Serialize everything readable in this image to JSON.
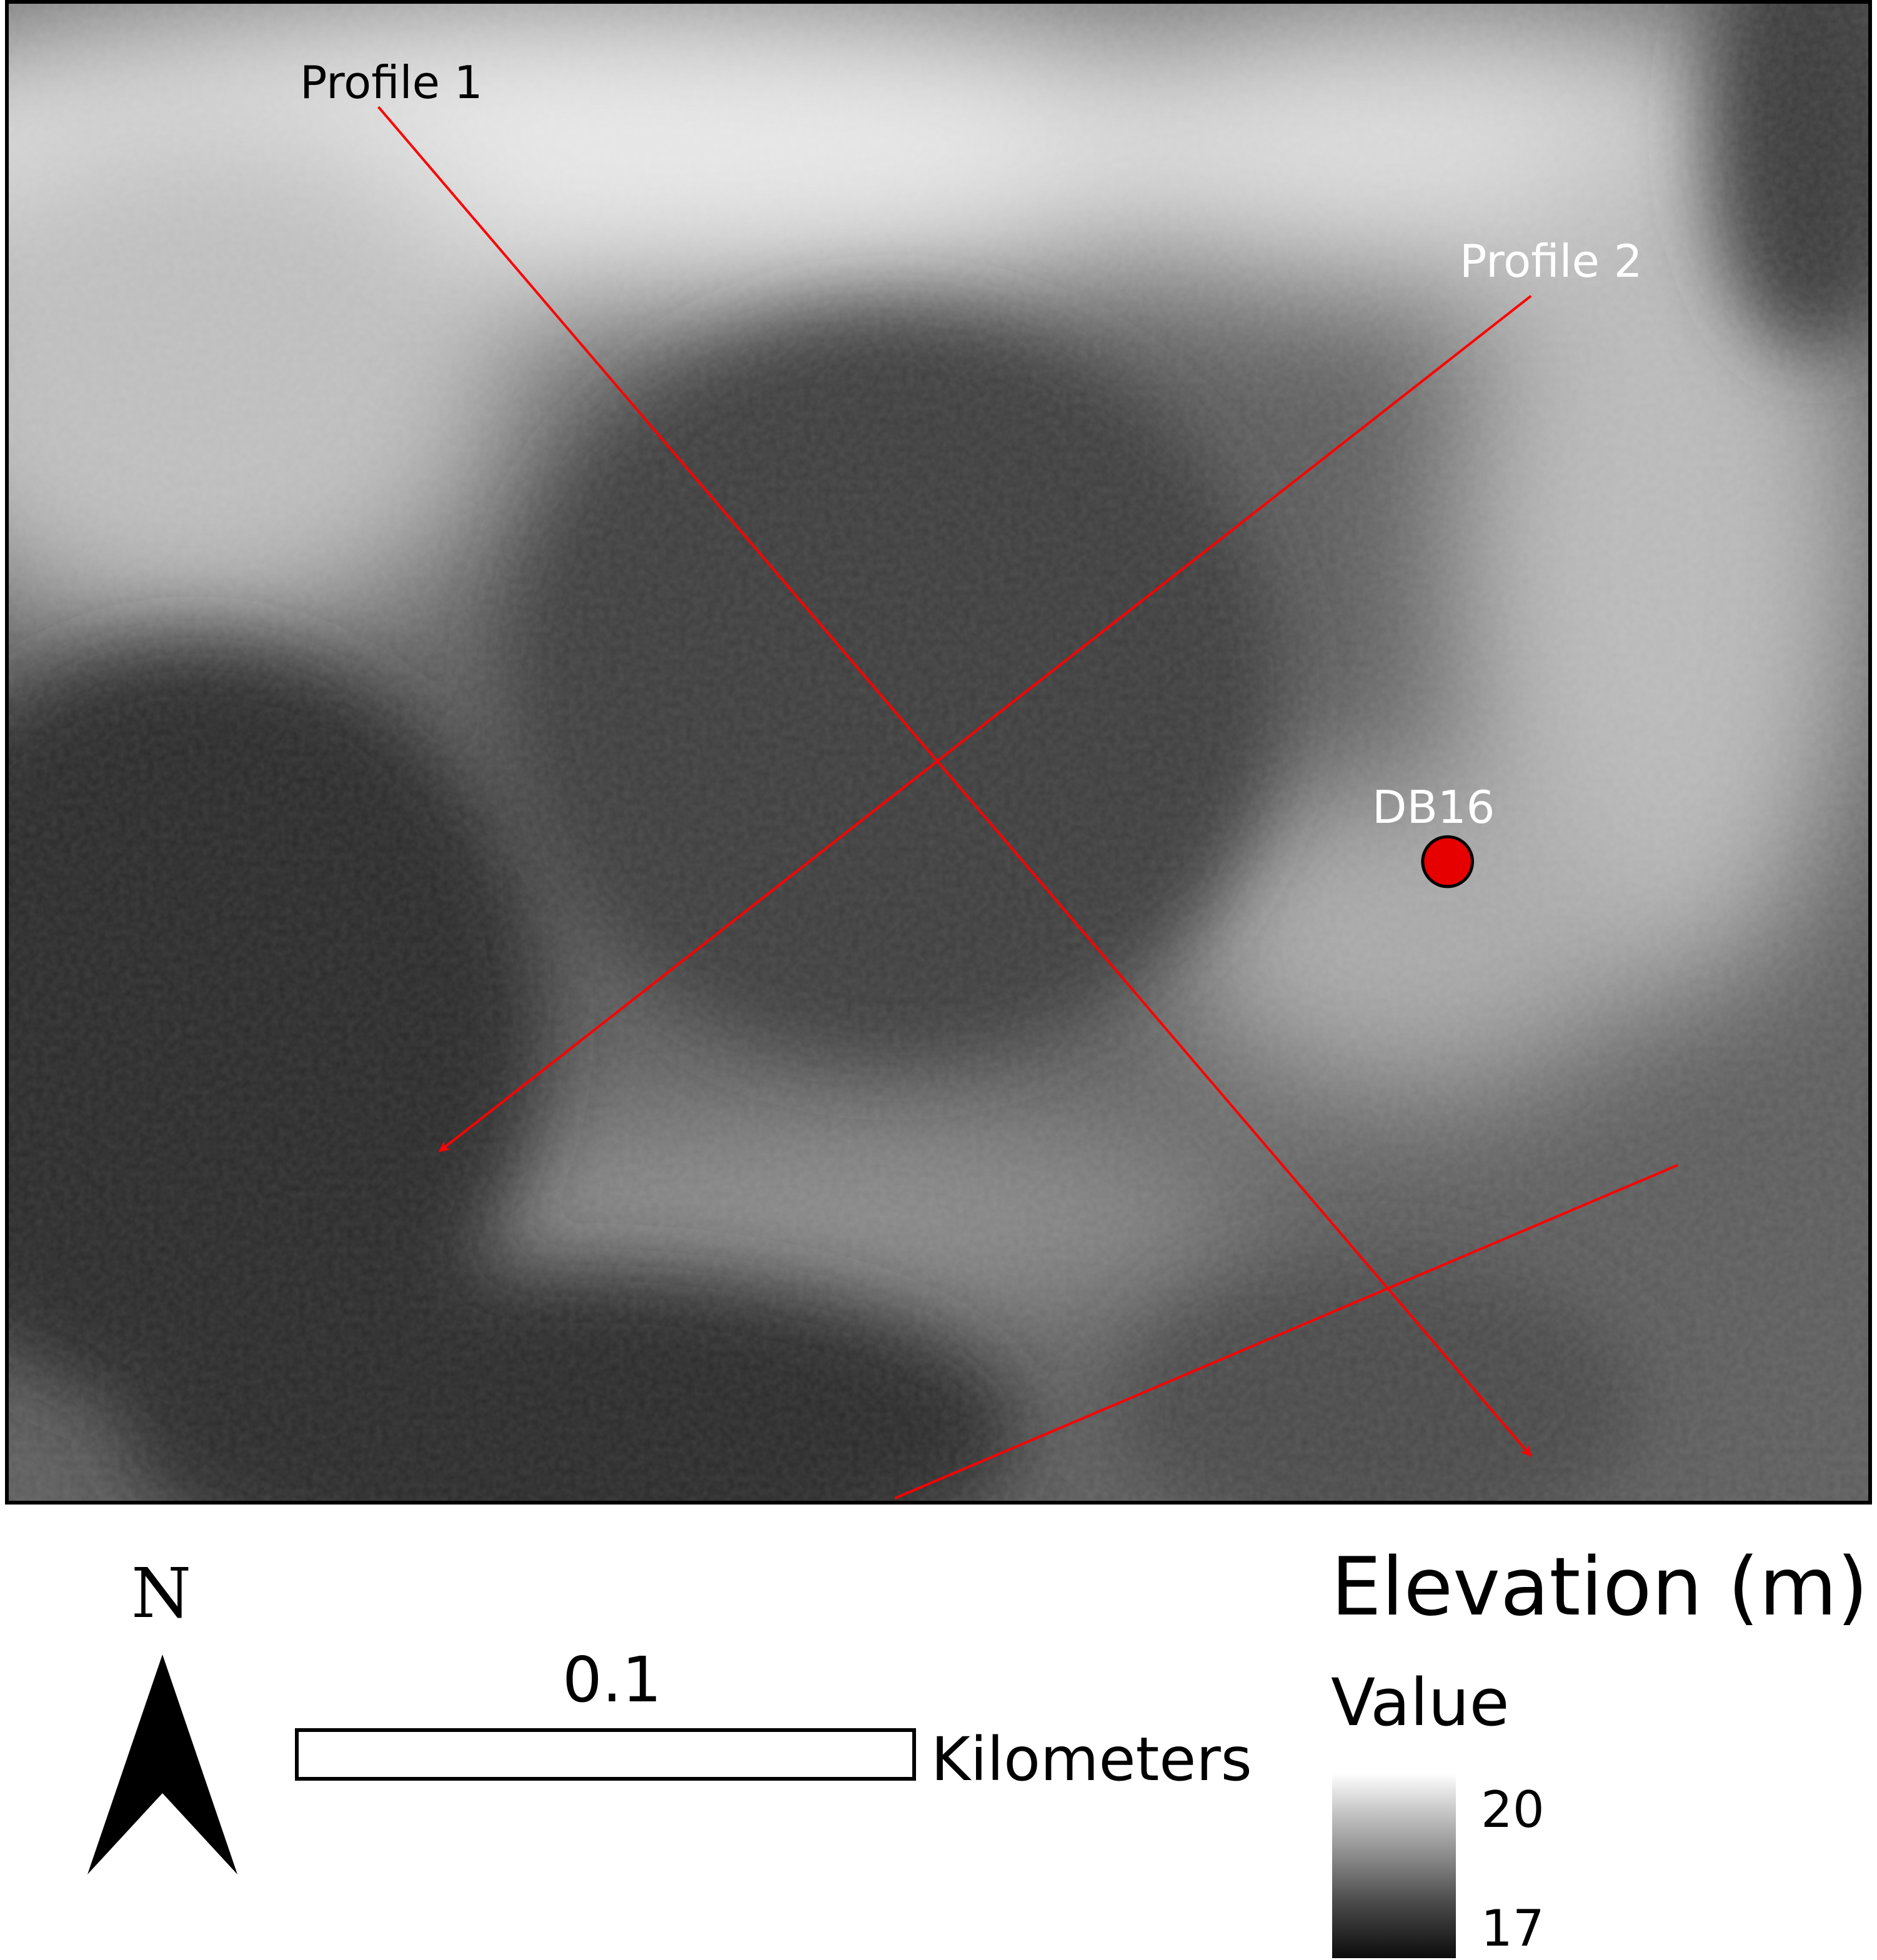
{
  "map": {
    "profile_1_label": "Profile 1",
    "profile_2_label": "Profile 2",
    "site_label": "DB16",
    "line_color": "#ff0000",
    "site_color": "#e60000"
  },
  "north_arrow": {
    "letter": "N"
  },
  "scale_bar": {
    "value": "0.1",
    "unit": "Kilometers"
  },
  "legend": {
    "title": "Elevation (m)",
    "subtitle": "Value",
    "high_value": "20",
    "low_value": "17",
    "ramp_high_color": "#ffffff",
    "ramp_low_color": "#000000"
  }
}
